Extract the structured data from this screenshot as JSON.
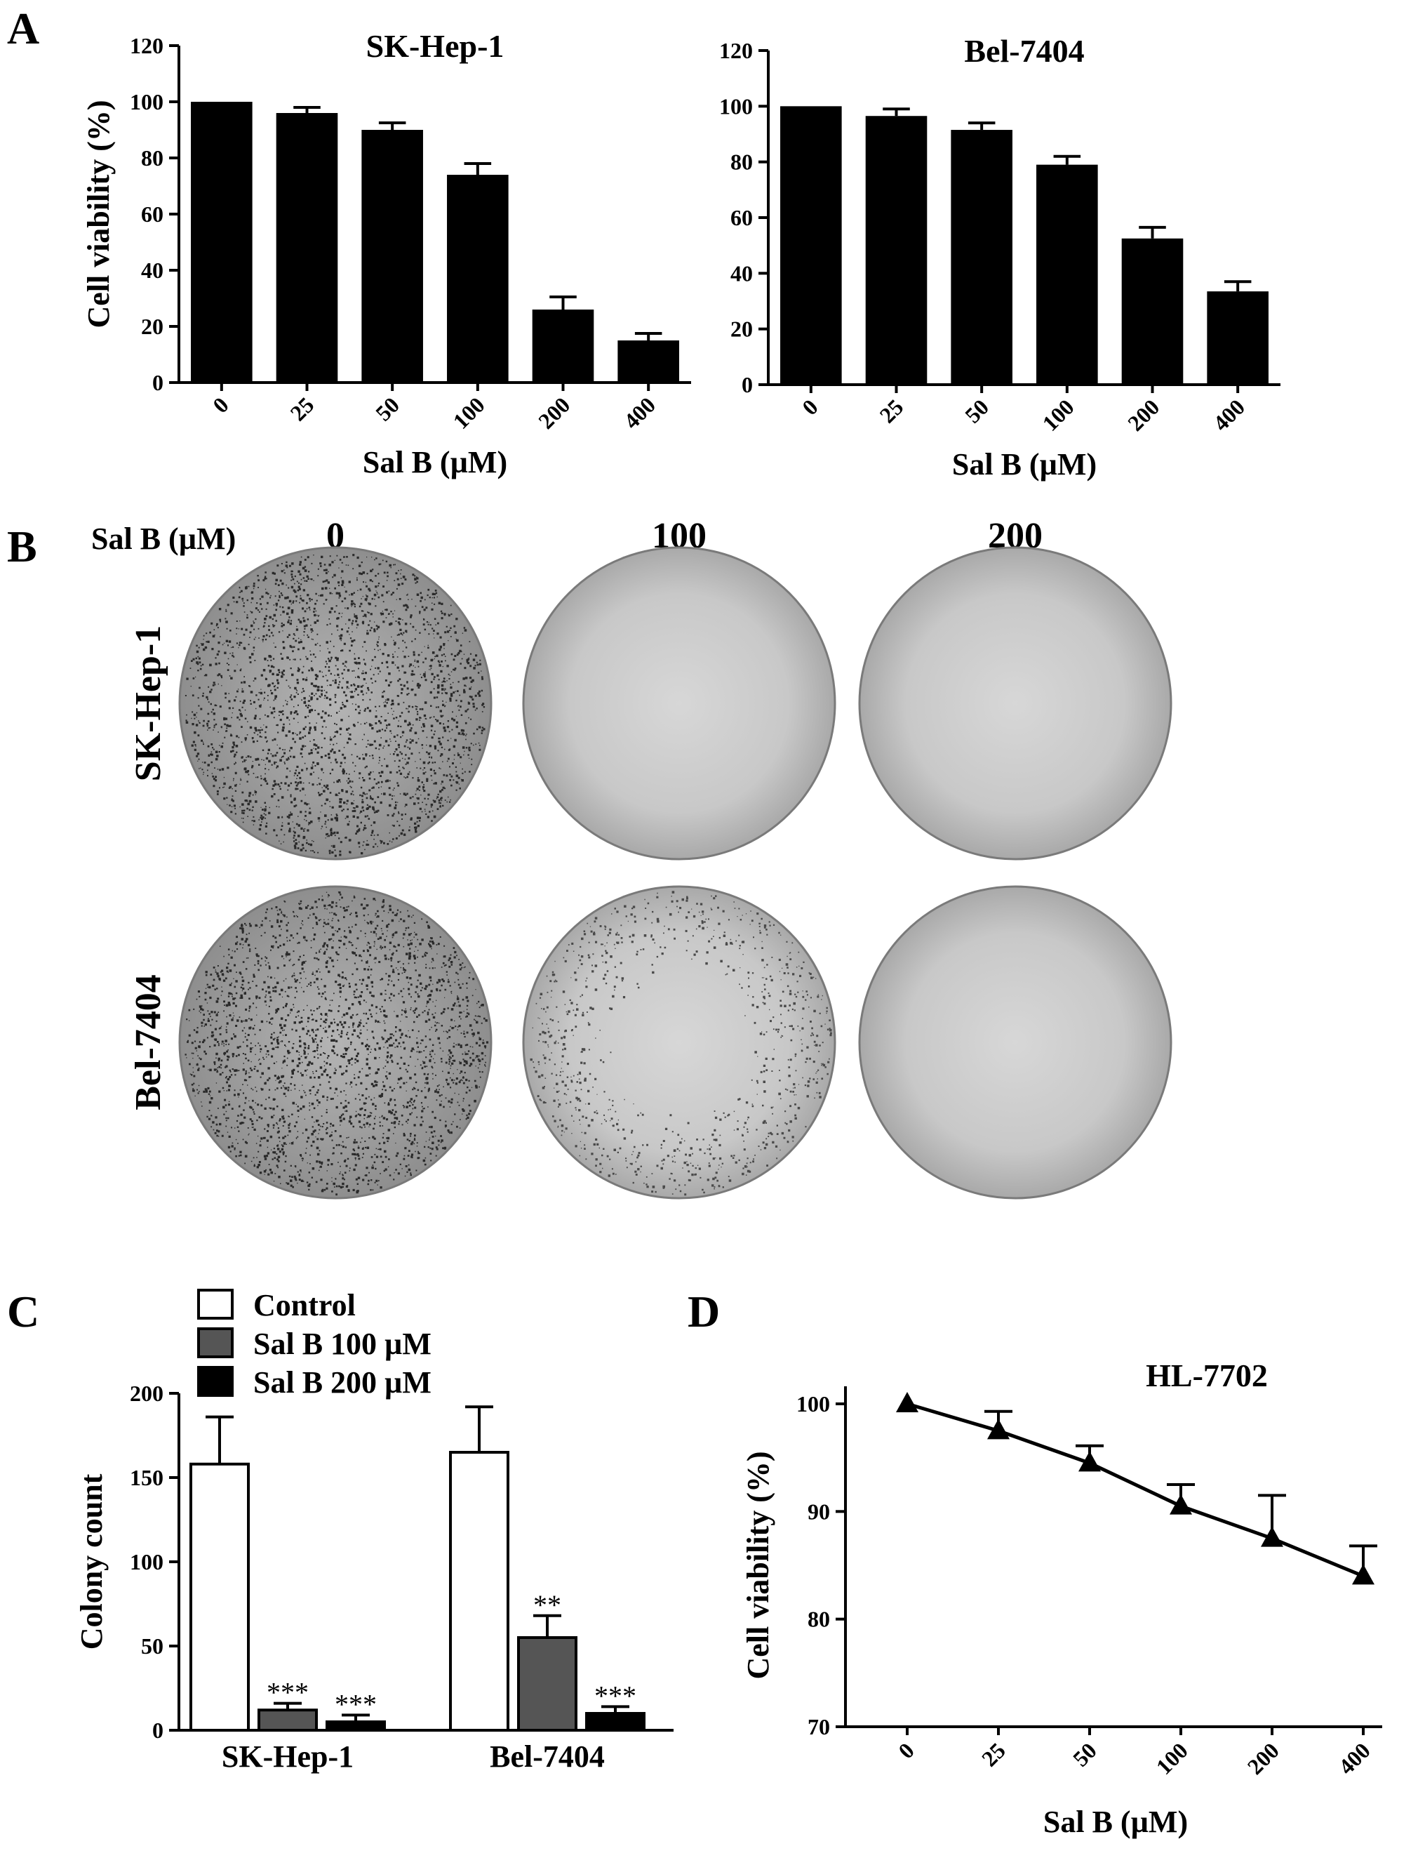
{
  "panels": {
    "A": {
      "letter": "A"
    },
    "B": {
      "letter": "B",
      "header_label": "Sal B (µM)",
      "concentrations": [
        "0",
        "100",
        "200"
      ],
      "rows": [
        "SK-Hep-1",
        "Bel-7404"
      ],
      "plates": [
        {
          "row": "SK-Hep-1",
          "conc": "0",
          "colony_density": "high"
        },
        {
          "row": "SK-Hep-1",
          "conc": "100",
          "colony_density": "none"
        },
        {
          "row": "SK-Hep-1",
          "conc": "200",
          "colony_density": "none"
        },
        {
          "row": "Bel-7404",
          "conc": "0",
          "colony_density": "high"
        },
        {
          "row": "Bel-7404",
          "conc": "100",
          "colony_density": "low"
        },
        {
          "row": "Bel-7404",
          "conc": "200",
          "colony_density": "none"
        }
      ]
    },
    "C": {
      "letter": "C"
    },
    "D": {
      "letter": "D"
    }
  },
  "chart_data": [
    {
      "id": "A1",
      "type": "bar",
      "title": "SK-Hep-1",
      "xlabel": "Sal B (µM)",
      "ylabel": "Cell viability (%)",
      "categories": [
        "0",
        "25",
        "50",
        "100",
        "200",
        "400"
      ],
      "values": [
        100,
        96,
        90,
        74,
        26,
        15
      ],
      "errors": [
        0,
        2,
        2.5,
        4,
        4.5,
        2.5
      ],
      "ylim": [
        0,
        120
      ],
      "yticks": [
        "0",
        "20",
        "40",
        "60",
        "80",
        "100",
        "120"
      ],
      "bar_color": "#000000"
    },
    {
      "id": "A2",
      "type": "bar",
      "title": "Bel-7404",
      "xlabel": "Sal B (µM)",
      "ylabel": "",
      "categories": [
        "0",
        "25",
        "50",
        "100",
        "200",
        "400"
      ],
      "values": [
        100,
        96.5,
        91.5,
        79,
        52.5,
        33.5
      ],
      "errors": [
        0,
        2.5,
        2.5,
        3,
        4,
        3.5
      ],
      "ylim": [
        0,
        120
      ],
      "yticks": [
        "0",
        "20",
        "40",
        "60",
        "80",
        "100",
        "120"
      ],
      "bar_color": "#000000"
    },
    {
      "id": "C",
      "type": "bar",
      "title": "",
      "xlabel": "",
      "ylabel": "Colony count",
      "categories": [
        "SK-Hep-1",
        "Bel-7404"
      ],
      "series": [
        {
          "name": "Control",
          "values": [
            158,
            165
          ],
          "errors": [
            28,
            27
          ],
          "color": "#ffffff",
          "sig": [
            "",
            ""
          ]
        },
        {
          "name": "Sal B 100 µM",
          "values": [
            12,
            55
          ],
          "errors": [
            4,
            13
          ],
          "color": "#555555",
          "sig": [
            "***",
            "**"
          ]
        },
        {
          "name": "Sal B 200 µM",
          "values": [
            5,
            10
          ],
          "errors": [
            4,
            4
          ],
          "color": "#000000",
          "sig": [
            "***",
            "***"
          ]
        }
      ],
      "ylim": [
        0,
        200
      ],
      "yticks": [
        "0",
        "50",
        "100",
        "150",
        "200"
      ],
      "legend": "top-left"
    },
    {
      "id": "D",
      "type": "line",
      "title": "HL-7702",
      "xlabel": "Sal B (µM)",
      "ylabel": "Cell viability (%)",
      "x": [
        "0",
        "25",
        "50",
        "100",
        "200",
        "400"
      ],
      "y": [
        100,
        97.5,
        94.5,
        90.5,
        87.5,
        84
      ],
      "errors": [
        0,
        1.8,
        1.6,
        2,
        4,
        2.8
      ],
      "ylim": [
        70,
        100
      ],
      "yticks": [
        "70",
        "80",
        "90",
        "100"
      ],
      "marker": "triangle"
    }
  ]
}
